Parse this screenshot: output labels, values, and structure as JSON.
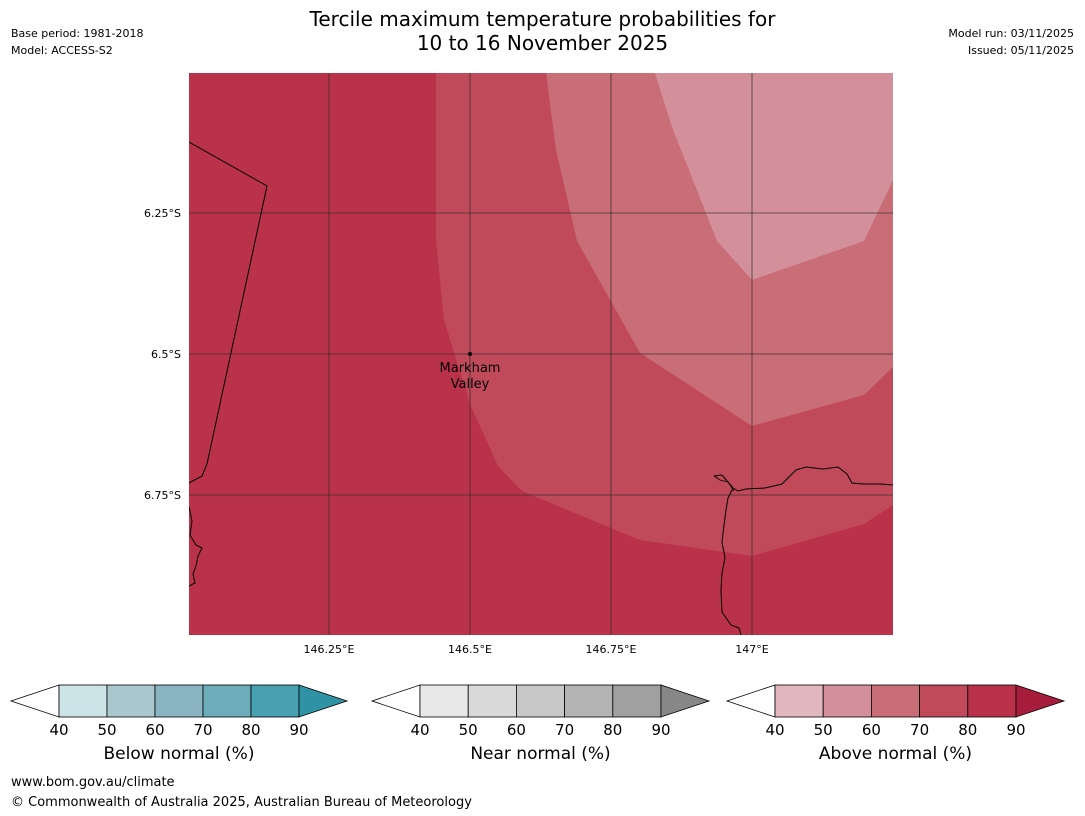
{
  "header": {
    "title_line1": "Tercile maximum temperature probabilities for",
    "title_line2": "10 to 16 November 2025",
    "base_period": "Base period: 1981-2018",
    "model": "Model: ACCESS-S2",
    "model_run": "Model run: 03/11/2025",
    "issued": "Issued: 05/11/2025"
  },
  "map": {
    "lat_labels": [
      "6.25°S",
      "6.5°S",
      "6.75°S"
    ],
    "lon_labels": [
      "146.25°E",
      "146.5°E",
      "146.75°E",
      "147°E"
    ],
    "location_name_line1": "Markham",
    "location_name_line2": "Valley",
    "region_probabilities_above_normal": [
      "70-80%",
      "60-70%",
      "50-60%"
    ]
  },
  "legends": [
    {
      "title": "Below normal (%)",
      "ticks": [
        "40",
        "50",
        "60",
        "70",
        "80",
        "90"
      ],
      "colors": [
        "#ffffff",
        "#cce3e8",
        "#a9c7cc",
        "#8ab4c1",
        "#6cadbc",
        "#48a1b0",
        "#2f93a5"
      ]
    },
    {
      "title": "Near normal (%)",
      "ticks": [
        "40",
        "50",
        "60",
        "70",
        "80",
        "90"
      ],
      "colors": [
        "#ffffff",
        "#e8e8e8",
        "#d9d9d9",
        "#c8c8c8",
        "#b4b4b4",
        "#a0a0a0",
        "#878787"
      ]
    },
    {
      "title": "Above normal (%)",
      "ticks": [
        "40",
        "50",
        "60",
        "70",
        "80",
        "90"
      ],
      "colors": [
        "#ffffff",
        "#e1b7bd",
        "#d4909a",
        "#c96d77",
        "#c04a59",
        "#b93249",
        "#a61d3b"
      ]
    }
  ],
  "footer": {
    "url": "www.bom.gov.au/climate",
    "copyright": "© Commonwealth of Australia 2025, Australian Bureau of Meteorology"
  }
}
